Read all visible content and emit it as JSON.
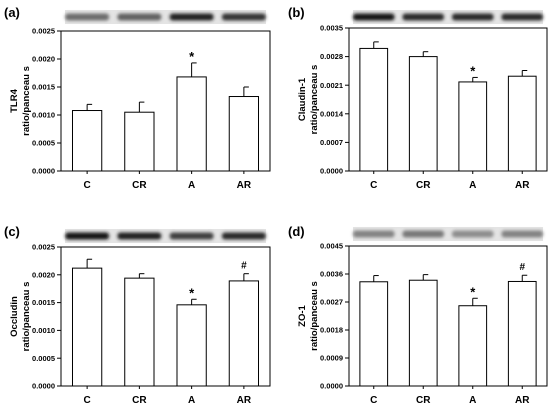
{
  "chart_data": [
    {
      "type": "bar",
      "panel": "(a)",
      "ylabel_lines": [
        "TLR4",
        "ratio/panceau s"
      ],
      "categories": [
        "C",
        "CR",
        "A",
        "AR"
      ],
      "values": [
        0.00108,
        0.00105,
        0.00168,
        0.00133
      ],
      "errors": [
        0.00011,
        0.00018,
        0.00025,
        0.00017
      ],
      "annotations": [
        "",
        "",
        "*",
        ""
      ],
      "ylim": [
        0,
        0.0025
      ],
      "yticks": [
        "0.0000",
        "0.0005",
        "0.0010",
        "0.0015",
        "0.0020",
        "0.0025"
      ],
      "blot": {
        "darkness": [
          0.55,
          0.6,
          0.9,
          0.8
        ]
      }
    },
    {
      "type": "bar",
      "panel": "(b)",
      "ylabel_lines": [
        "Claudin-1",
        "ratio/panceau s"
      ],
      "categories": [
        "C",
        "CR",
        "A",
        "AR"
      ],
      "values": [
        0.003,
        0.0028,
        0.00218,
        0.00232
      ],
      "errors": [
        0.00016,
        0.00012,
        0.00011,
        0.00014
      ],
      "annotations": [
        "",
        "",
        "*",
        ""
      ],
      "ylim": [
        0,
        0.0035
      ],
      "yticks": [
        "0.0000",
        "0.0007",
        "0.0014",
        "0.0021",
        "0.0028",
        "0.0035"
      ],
      "blot": {
        "darkness": [
          0.95,
          0.85,
          0.85,
          0.85
        ]
      }
    },
    {
      "type": "bar",
      "panel": "(c)",
      "ylabel_lines": [
        "Occludin",
        "ratio/panceau s"
      ],
      "categories": [
        "C",
        "CR",
        "A",
        "AR"
      ],
      "values": [
        0.00212,
        0.00194,
        0.00146,
        0.00189
      ],
      "errors": [
        0.00016,
        8e-05,
        0.0001,
        0.00013
      ],
      "annotations": [
        "",
        "",
        "*",
        "#"
      ],
      "ylim": [
        0,
        0.0025
      ],
      "yticks": [
        "0.0000",
        "0.0005",
        "0.0010",
        "0.0015",
        "0.0020",
        "0.0025"
      ],
      "blot": {
        "darkness": [
          0.95,
          0.9,
          0.75,
          0.85
        ]
      }
    },
    {
      "type": "bar",
      "panel": "(d)",
      "ylabel_lines": [
        "ZO-1",
        "ratio/panceau s"
      ],
      "categories": [
        "C",
        "CR",
        "A",
        "AR"
      ],
      "values": [
        0.00335,
        0.0034,
        0.00258,
        0.00336
      ],
      "errors": [
        0.0002,
        0.00018,
        0.00024,
        0.0002
      ],
      "annotations": [
        "",
        "",
        "*",
        "#"
      ],
      "ylim": [
        0,
        0.0045
      ],
      "yticks": [
        "0.0000",
        "0.0009",
        "0.0018",
        "0.0027",
        "0.0036",
        "0.0045"
      ],
      "blot": {
        "darkness": [
          0.45,
          0.5,
          0.4,
          0.45
        ]
      }
    }
  ]
}
